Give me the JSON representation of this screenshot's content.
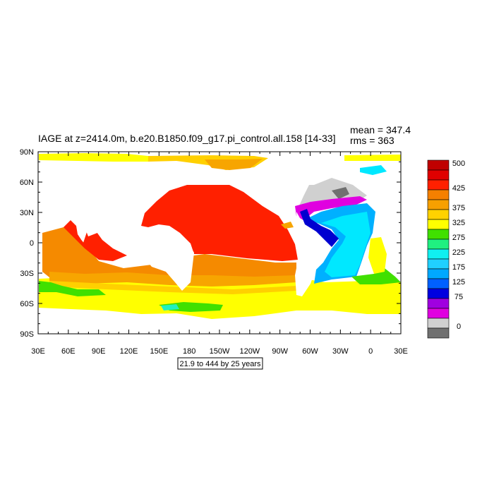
{
  "title": "IAGE at z=2414.0m, b.e20.B1850.f09_g17.pi_control.all.158 [14-33]",
  "stats": {
    "mean_label": "mean = 347.4",
    "rms_label": "rms = 363"
  },
  "contour_note": "21.9 to 444 by 25 years",
  "map": {
    "lon_ticks": [
      "30E",
      "60E",
      "90E",
      "120E",
      "150E",
      "180",
      "150W",
      "120W",
      "90W",
      "60W",
      "30W",
      "0",
      "30E"
    ],
    "lat_ticks": [
      "90N",
      "60N",
      "30N",
      "0",
      "30S",
      "60S",
      "90S"
    ]
  },
  "colorbar": {
    "labels": [
      "500",
      "425",
      "375",
      "325",
      "275",
      "225",
      "175",
      "125",
      "75",
      "0"
    ],
    "colors": [
      "#c00000",
      "#e00000",
      "#ff2000",
      "#f58000",
      "#f7a000",
      "#ffd200",
      "#ffff00",
      "#40e000",
      "#20f080",
      "#10f0f0",
      "#20d0ff",
      "#00a8ff",
      "#0060ff",
      "#0000e0",
      "#a000e0",
      "#e000e0",
      "#d0d0d0",
      "#707070"
    ]
  },
  "colors": {
    "red": "#ff2000",
    "orange": "#f58a00",
    "light_orange": "#f7a500",
    "gold": "#ffd000",
    "yellow": "#ffff00",
    "green": "#40e000",
    "cyan": "#00e8ff",
    "blue": "#00b0ff",
    "deep_blue": "#0000d0",
    "purple": "#a000e0",
    "magenta": "#e000e0",
    "light_gray": "#d0d0d0",
    "dark_gray": "#707070"
  }
}
